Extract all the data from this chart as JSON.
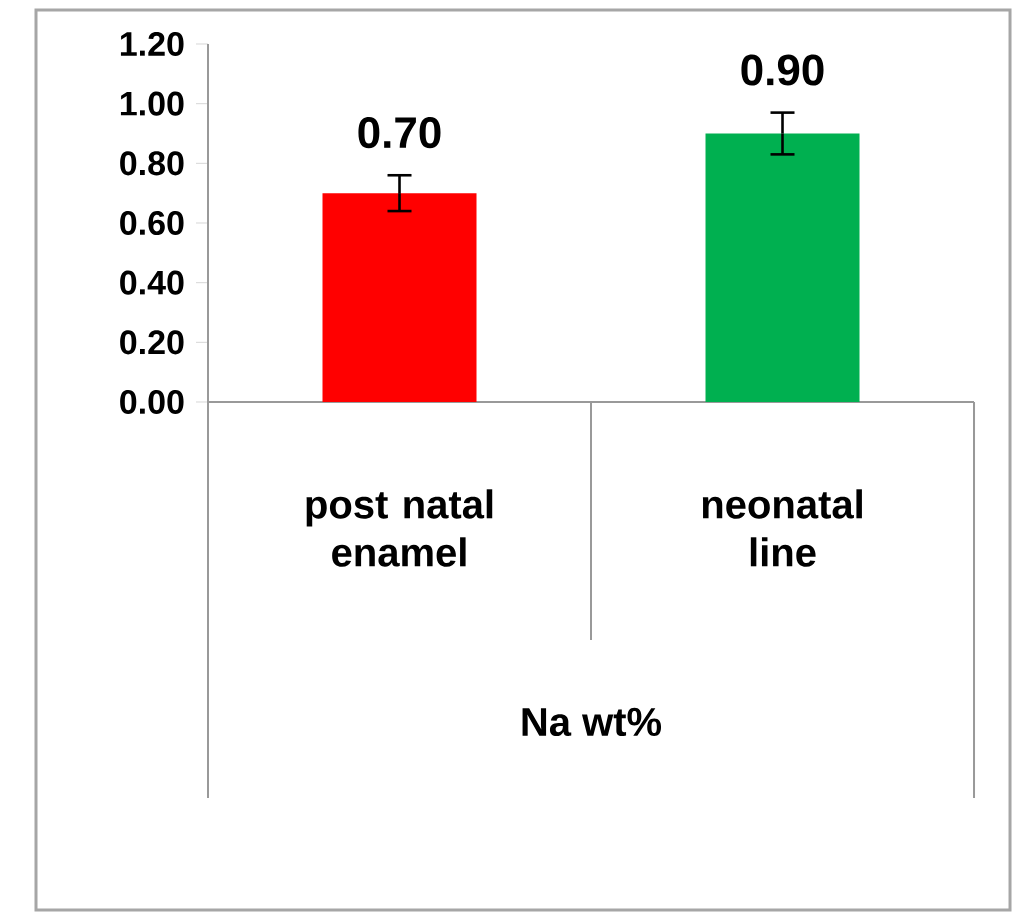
{
  "chart_data": {
    "type": "bar",
    "xlabel": "Na wt%",
    "categories": [
      "post natal enamel",
      "neonatal line"
    ],
    "values": [
      0.7,
      0.9
    ],
    "errors": [
      0.06,
      0.07
    ],
    "colors": [
      "#ff0000",
      "#00b050"
    ],
    "value_labels": [
      "0.70",
      "0.90"
    ],
    "ylim": [
      0,
      1.2
    ],
    "yticks": [
      {
        "value": 0,
        "label": "0.00"
      },
      {
        "value": 0.2,
        "label": "0.20"
      },
      {
        "value": 0.4,
        "label": "0.40"
      },
      {
        "value": 0.6,
        "label": "0.60"
      },
      {
        "value": 0.8,
        "label": "0.80"
      },
      {
        "value": 1.0,
        "label": "1.00"
      },
      {
        "value": 1.2,
        "label": "1.20"
      }
    ],
    "grid": false
  }
}
